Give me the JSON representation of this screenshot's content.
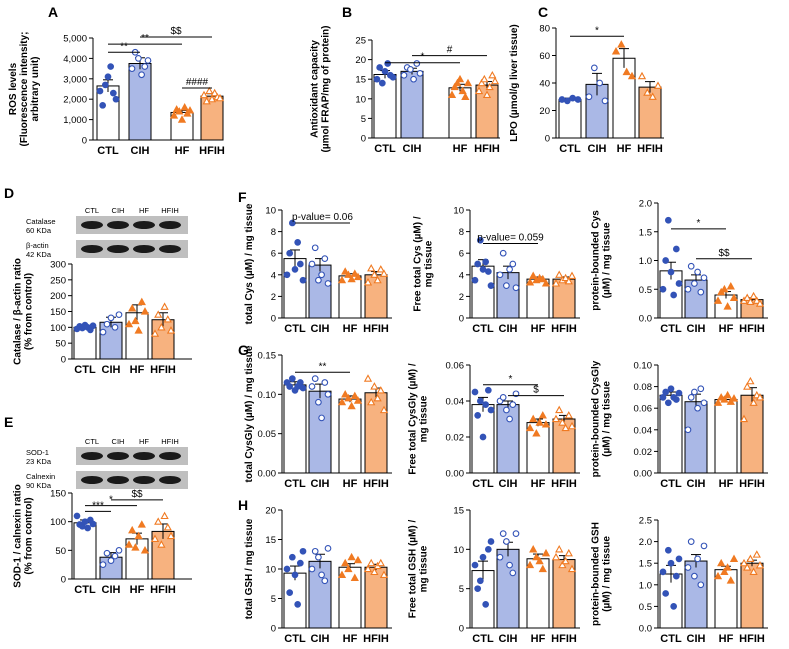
{
  "colors": {
    "ctl": "#ffffff",
    "cih": "#aab8e6",
    "hf": "#ffffff",
    "hfih": "#f7b27f",
    "dot_blue": "#3353b7",
    "dot_orange": "#f07a22"
  },
  "blots": {
    "D": {
      "lanes": [
        "CTL",
        "CIH",
        "HF",
        "HFIH"
      ],
      "rows": [
        [
          "Catalase",
          "60 KDa"
        ],
        [
          "β-actin",
          "42 KDa"
        ]
      ]
    },
    "E": {
      "lanes": [
        "CTL",
        "CIH",
        "HF",
        "HFIH"
      ],
      "rows": [
        [
          "SOD-1",
          "23 KDa"
        ],
        [
          "Calnexin",
          "90 KDa"
        ]
      ]
    }
  },
  "chart_data": [
    {
      "panel": "A",
      "letter": "A",
      "type": "bar",
      "categories": [
        "CTL",
        "CIH",
        "HF",
        "HFIH"
      ],
      "ylabel": [
        "ROS levels",
        "(Fluorescence intensity;",
        "arbitrary unit)"
      ],
      "ylim": [
        0,
        5000
      ],
      "yticks": [
        0,
        1000,
        2000,
        3000,
        4000,
        5000
      ],
      "yticklabels": [
        "0",
        "1,000",
        "2,000",
        "3,000",
        "4,000",
        "5,000"
      ],
      "values": [
        2650,
        3750,
        1350,
        2150
      ],
      "errors": [
        300,
        280,
        100,
        120
      ],
      "points": [
        [
          2400,
          1700,
          2700,
          3100,
          3600,
          2300,
          2000
        ],
        [
          3500,
          4300,
          4000,
          3200,
          3600,
          3900
        ],
        [
          1200,
          1500,
          1400,
          1000,
          1600,
          1300,
          1450
        ],
        [
          2200,
          1900,
          2400,
          2000,
          2300,
          2100,
          2050
        ]
      ],
      "annotations": [
        {
          "text": "**",
          "x1": 0,
          "x2": 1,
          "y": 4300
        },
        {
          "text": "**",
          "x1": 0,
          "x2": 2,
          "y": 4700
        },
        {
          "text": "$$",
          "x1": 1,
          "x2": 3,
          "y": 5050
        },
        {
          "text": "####",
          "x1": 2,
          "x2": 3,
          "y": 2550
        }
      ]
    },
    {
      "panel": "B",
      "letter": "B",
      "type": "bar",
      "categories": [
        "CTL",
        "CIH",
        "HF",
        "HFIH"
      ],
      "ylabel": [
        "Antioxidant capacity",
        "(µmol FRAP/mg of protein)"
      ],
      "ylim": [
        0,
        25
      ],
      "yticks": [
        0,
        5,
        10,
        15,
        20,
        25
      ],
      "yticklabels": [
        "0",
        "5",
        "10",
        "15",
        "20",
        "25"
      ],
      "values": [
        16.2,
        17.0,
        12.8,
        13.5
      ],
      "errors": [
        1.0,
        0.8,
        0.9,
        0.9
      ],
      "points": [
        [
          15,
          18,
          14,
          17,
          19,
          16,
          15.5
        ],
        [
          16,
          18,
          17.5,
          15,
          19,
          16.5
        ],
        [
          11,
          13,
          14,
          15,
          12,
          10.5,
          14
        ],
        [
          12,
          14,
          15,
          11,
          13,
          16,
          14.5
        ]
      ],
      "annotations": [
        {
          "text": "*",
          "x1": 0,
          "x2": 2,
          "y": 19.2
        },
        {
          "text": "#",
          "x1": 1,
          "x2": 3,
          "y": 21
        }
      ]
    },
    {
      "panel": "C",
      "letter": "C",
      "type": "bar",
      "categories": [
        "CTL",
        "CIH",
        "HF",
        "HFIH"
      ],
      "ylabel": [
        "LPO (µmol/g liver tissue)"
      ],
      "ylim": [
        0,
        80
      ],
      "yticks": [
        0,
        20,
        40,
        60,
        80
      ],
      "yticklabels": [
        "0",
        "20",
        "40",
        "60",
        "80"
      ],
      "values": [
        28,
        39,
        58,
        37
      ],
      "errors": [
        1,
        8,
        7,
        4
      ],
      "points": [
        [
          28,
          27,
          29,
          28
        ],
        [
          30,
          51,
          40,
          27
        ],
        [
          63,
          68,
          48,
          45
        ],
        [
          45,
          33,
          30,
          38
        ]
      ],
      "annotations": [
        {
          "text": "*",
          "x1": 0,
          "x2": 2,
          "y": 74
        }
      ]
    },
    {
      "panel": "D",
      "letter": "D",
      "type": "bar",
      "categories": [
        "CTL",
        "CIH",
        "HF",
        "HFIH"
      ],
      "ylabel": [
        "Catalase / β-actin ratio",
        "(% from control)"
      ],
      "ylim": [
        0,
        300
      ],
      "yticks": [
        0,
        50,
        100,
        150,
        200,
        250,
        300
      ],
      "yticklabels": [
        "0",
        "50",
        "100",
        "150",
        "200",
        "250",
        "300"
      ],
      "values": [
        100,
        116,
        146,
        124
      ],
      "errors": [
        5,
        16,
        25,
        22
      ],
      "points": [
        [
          95,
          103,
          98,
          107,
          100,
          92,
          105
        ],
        [
          85,
          110,
          130,
          100,
          140
        ],
        [
          110,
          160,
          120,
          90,
          180,
          150
        ],
        [
          80,
          140,
          100,
          165,
          125,
          90
        ]
      ],
      "annotations": []
    },
    {
      "panel": "E",
      "letter": "E",
      "type": "bar",
      "categories": [
        "CTL",
        "CIH",
        "HF",
        "HFIH"
      ],
      "ylabel": [
        "SOD-1 / calnexin ratio",
        "(% from control)"
      ],
      "ylim": [
        0,
        150
      ],
      "yticks": [
        0,
        50,
        100,
        150
      ],
      "yticklabels": [
        "0",
        "50",
        "100",
        "150"
      ],
      "values": [
        98,
        38,
        70,
        83
      ],
      "errors": [
        5,
        8,
        10,
        13
      ],
      "points": [
        [
          110,
          95,
          92,
          100,
          89,
          103,
          96
        ],
        [
          25,
          45,
          32,
          40,
          50
        ],
        [
          60,
          85,
          55,
          75,
          95,
          50
        ],
        [
          70,
          100,
          60,
          110,
          90,
          75
        ]
      ],
      "annotations": [
        {
          "text": "***",
          "x1": 0,
          "x2": 1,
          "y": 118
        },
        {
          "text": "*",
          "x1": 0,
          "x2": 2,
          "y": 128
        },
        {
          "text": "$$",
          "x1": 1,
          "x2": 3,
          "y": 138
        }
      ]
    },
    {
      "panel": "F1",
      "letter": "F",
      "type": "bar",
      "categories": [
        "CTL",
        "CIH",
        "HF",
        "HFIH"
      ],
      "ylabel": [
        "total Cys (µM) / mg tissue"
      ],
      "ylim": [
        0,
        10
      ],
      "yticks": [
        0,
        2,
        4,
        6,
        8,
        10
      ],
      "yticklabels": [
        "0",
        "2",
        "4",
        "6",
        "8",
        "10"
      ],
      "values": [
        5.5,
        4.9,
        3.9,
        4.0
      ],
      "errors": [
        0.8,
        0.6,
        0.2,
        0.3
      ],
      "points": [
        [
          4,
          6,
          8.8,
          4.5,
          7,
          5,
          3.5
        ],
        [
          5,
          6.5,
          3.5,
          4,
          5.5,
          3.2
        ],
        [
          3.5,
          4.3,
          4,
          3.6,
          4.1,
          3.8
        ],
        [
          3.3,
          4.6,
          4,
          3.5,
          4.5,
          4.1
        ]
      ],
      "annotations": [
        {
          "text": "p-value= 0.06",
          "x1": 0,
          "x2": 2,
          "y": 8.8
        }
      ]
    },
    {
      "panel": "F2",
      "letter": "",
      "type": "bar",
      "categories": [
        "CTL",
        "CIH",
        "HF",
        "HFIH"
      ],
      "ylabel": [
        "Free total Cys (µM) /",
        "mg tissue"
      ],
      "ylim": [
        0,
        10
      ],
      "yticks": [
        0,
        2,
        4,
        6,
        8,
        10
      ],
      "yticklabels": [
        "0",
        "2",
        "4",
        "6",
        "8",
        "10"
      ],
      "values": [
        4.8,
        4.2,
        3.6,
        3.6
      ],
      "errors": [
        0.6,
        0.6,
        0.2,
        0.2
      ],
      "points": [
        [
          3.5,
          5,
          7.2,
          4.5,
          5.2,
          4.3,
          3
        ],
        [
          4,
          6,
          3,
          4.5,
          5,
          2.8
        ],
        [
          3.3,
          3.9,
          3.5,
          3.7,
          3.6,
          3.2
        ],
        [
          3.2,
          4,
          3.5,
          3.7,
          3.4,
          3.9
        ]
      ],
      "annotations": [
        {
          "text": "p-value= 0.059",
          "x1": 0,
          "x2": 2,
          "y": 6.9
        }
      ]
    },
    {
      "panel": "F3",
      "letter": "",
      "type": "bar",
      "categories": [
        "CTL",
        "CIH",
        "HF",
        "HFIH"
      ],
      "ylabel": [
        "protein-bounded Cys",
        "(µM) / mg tissue"
      ],
      "ylim": [
        0,
        2.0
      ],
      "yticks": [
        0,
        0.5,
        1.0,
        1.5,
        2.0
      ],
      "yticklabels": [
        "0.0",
        "0.5",
        "1.0",
        "1.5",
        "2.0"
      ],
      "values": [
        0.82,
        0.66,
        0.4,
        0.32
      ],
      "errors": [
        0.15,
        0.09,
        0.06,
        0.03
      ],
      "points": [
        [
          0.5,
          1.0,
          1.7,
          0.8,
          0.4,
          1.2,
          0.6
        ],
        [
          0.5,
          0.9,
          0.6,
          0.8,
          0.45,
          0.7
        ],
        [
          0.3,
          0.45,
          0.5,
          0.2,
          0.55,
          0.35
        ],
        [
          0.3,
          0.35,
          0.28,
          0.38,
          0.3,
          0.25
        ]
      ],
      "annotations": [
        {
          "text": "*",
          "x1": 0,
          "x2": 2,
          "y": 1.55
        },
        {
          "text": "$$",
          "x1": 1,
          "x2": 3,
          "y": 1.03
        }
      ]
    },
    {
      "panel": "G1",
      "letter": "G",
      "type": "bar",
      "categories": [
        "CTL",
        "CIH",
        "HF",
        "HFIH"
      ],
      "ylabel": [
        "total CysGly (µM) / mg tissue"
      ],
      "ylim": [
        0,
        0.15
      ],
      "yticks": [
        0,
        0.05,
        0.1,
        0.15
      ],
      "yticklabels": [
        "0.00",
        "0.05",
        "0.10",
        "0.15"
      ],
      "values": [
        0.112,
        0.104,
        0.094,
        0.102
      ],
      "errors": [
        0.004,
        0.009,
        0.004,
        0.006
      ],
      "points": [
        [
          0.115,
          0.11,
          0.12,
          0.105,
          0.11,
          0.115,
          0.108
        ],
        [
          0.11,
          0.12,
          0.09,
          0.07,
          0.115,
          0.1
        ],
        [
          0.09,
          0.1,
          0.095,
          0.085,
          0.098,
          0.092
        ],
        [
          0.12,
          0.09,
          0.11,
          0.095,
          0.105,
          0.08
        ]
      ],
      "annotations": [
        {
          "text": "**",
          "x1": 0,
          "x2": 2,
          "y": 0.128
        }
      ]
    },
    {
      "panel": "G2",
      "letter": "",
      "type": "bar",
      "categories": [
        "CTL",
        "CIH",
        "HF",
        "HFIH"
      ],
      "ylabel": [
        "Free total CysGly (µM) /",
        "mg tissue"
      ],
      "ylim": [
        0,
        0.06
      ],
      "yticks": [
        0,
        0.02,
        0.04,
        0.06
      ],
      "yticklabels": [
        "0.00",
        "0.02",
        "0.04",
        "0.06"
      ],
      "values": [
        0.038,
        0.038,
        0.028,
        0.03
      ],
      "errors": [
        0.004,
        0.002,
        0.002,
        0.002
      ],
      "points": [
        [
          0.045,
          0.032,
          0.04,
          0.02,
          0.038,
          0.046,
          0.035
        ],
        [
          0.04,
          0.042,
          0.035,
          0.03,
          0.038,
          0.044
        ],
        [
          0.025,
          0.03,
          0.022,
          0.028,
          0.032,
          0.027
        ],
        [
          0.03,
          0.035,
          0.028,
          0.025,
          0.032,
          0.026
        ]
      ],
      "annotations": [
        {
          "text": "*",
          "x1": 0,
          "x2": 2,
          "y": 0.049
        },
        {
          "text": "$",
          "x1": 1,
          "x2": 3,
          "y": 0.043
        }
      ]
    },
    {
      "panel": "G3",
      "letter": "",
      "type": "bar",
      "categories": [
        "CTL",
        "CIH",
        "HF",
        "HFIH"
      ],
      "ylabel": [
        "protein-bounded CysGly",
        "(µM) / mg tissue"
      ],
      "ylim": [
        0,
        0.1
      ],
      "yticks": [
        0,
        0.02,
        0.04,
        0.06,
        0.08,
        0.1
      ],
      "yticklabels": [
        "0.00",
        "0.02",
        "0.04",
        "0.06",
        "0.08",
        "0.10"
      ],
      "values": [
        0.072,
        0.066,
        0.068,
        0.072
      ],
      "errors": [
        0.003,
        0.007,
        0.002,
        0.007
      ],
      "points": [
        [
          0.07,
          0.075,
          0.065,
          0.078,
          0.07,
          0.068,
          0.074
        ],
        [
          0.04,
          0.07,
          0.075,
          0.06,
          0.078,
          0.065
        ],
        [
          0.065,
          0.07,
          0.068,
          0.072,
          0.066,
          0.069
        ],
        [
          0.05,
          0.08,
          0.085,
          0.065,
          0.072,
          0.07
        ]
      ],
      "annotations": []
    },
    {
      "panel": "H1",
      "letter": "H",
      "type": "bar",
      "categories": [
        "CTL",
        "CIH",
        "HF",
        "HFIH"
      ],
      "ylabel": [
        "total GSH / mg tissue"
      ],
      "ylim": [
        0,
        20
      ],
      "yticks": [
        0,
        5,
        10,
        15,
        20
      ],
      "yticklabels": [
        "0",
        "5",
        "10",
        "15",
        "20"
      ],
      "values": [
        9.3,
        11.3,
        10.3,
        10.3
      ],
      "errors": [
        1.2,
        1.2,
        0.6,
        0.5
      ],
      "points": [
        [
          10,
          6,
          12,
          9,
          4,
          11,
          13
        ],
        [
          10,
          13,
          12,
          9,
          8,
          13.5
        ],
        [
          9,
          11,
          10,
          12,
          8.5,
          11.5
        ],
        [
          10,
          11,
          9.5,
          10.5,
          11,
          9
        ]
      ],
      "annotations": []
    },
    {
      "panel": "H2",
      "letter": "",
      "type": "bar",
      "categories": [
        "CTL",
        "CIH",
        "HF",
        "HFIH"
      ],
      "ylabel": [
        "Free total GSH (µM) /",
        "mg tissue"
      ],
      "ylim": [
        0,
        15
      ],
      "yticks": [
        0,
        5,
        10,
        15
      ],
      "yticklabels": [
        "0",
        "5",
        "10",
        "15"
      ],
      "values": [
        7.3,
        10.0,
        8.8,
        8.7
      ],
      "errors": [
        1.2,
        0.9,
        0.6,
        0.5
      ],
      "points": [
        [
          8,
          5,
          6,
          9,
          3,
          10,
          11
        ],
        [
          9,
          12,
          11,
          8,
          7,
          12
        ],
        [
          8,
          10,
          9,
          8.5,
          7.5,
          9.5
        ],
        [
          9,
          10,
          8,
          8.5,
          9.5,
          7.5
        ]
      ],
      "annotations": []
    },
    {
      "panel": "H3",
      "letter": "",
      "type": "bar",
      "categories": [
        "CTL",
        "CIH",
        "HF",
        "HFIH"
      ],
      "ylabel": [
        "protein-bounded GSH",
        "(µM) / mg tissue"
      ],
      "ylim": [
        0,
        2.5
      ],
      "yticks": [
        0,
        0.5,
        1.0,
        1.5,
        2.0,
        2.5
      ],
      "yticklabels": [
        "0.0",
        "0.5",
        "1.0",
        "1.5",
        "2.0",
        "2.5"
      ],
      "values": [
        1.25,
        1.55,
        1.35,
        1.5
      ],
      "errors": [
        0.2,
        0.15,
        0.08,
        0.07
      ],
      "points": [
        [
          1.3,
          0.8,
          1.8,
          1.5,
          0.5,
          1.2,
          1.6
        ],
        [
          1.4,
          2.0,
          1.2,
          1.6,
          1.0,
          1.9
        ],
        [
          1.2,
          1.5,
          1.3,
          1.4,
          1.1,
          1.6
        ],
        [
          1.5,
          1.4,
          1.6,
          1.3,
          1.7,
          1.45
        ]
      ],
      "annotations": []
    }
  ]
}
